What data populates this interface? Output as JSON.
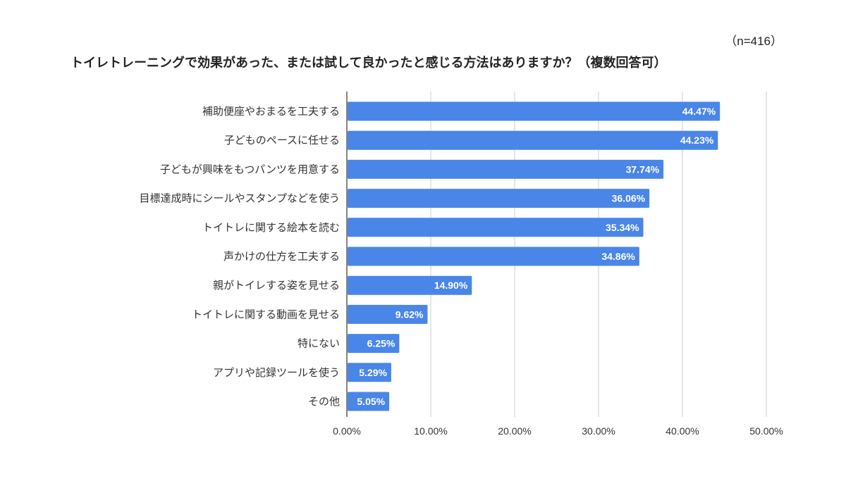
{
  "sample_size_label": "（n=416）",
  "chart_data": {
    "type": "bar",
    "orientation": "horizontal",
    "title": "トイレトレーニングで効果があった、または試して良かったと感じる方法はありますか？（複数回答可）",
    "categories": [
      "補助便座やおまるを工夫する",
      "子どものペースに任せる",
      "子どもが興味をもつパンツを用意する",
      "目標達成時にシールやスタンプなどを使う",
      "トイトレに関する絵本を読む",
      "声かけの仕方を工夫する",
      "親がトイレする姿を見せる",
      "トイトレに関する動画を見せる",
      "特にない",
      "アプリや記録ツールを使う",
      "その他"
    ],
    "values": [
      44.47,
      44.23,
      37.74,
      36.06,
      35.34,
      34.86,
      14.9,
      9.62,
      6.25,
      5.29,
      5.05
    ],
    "value_labels": [
      "44.47%",
      "44.23%",
      "37.74%",
      "36.06%",
      "35.34%",
      "34.86%",
      "14.90%",
      "9.62%",
      "6.25%",
      "5.29%",
      "5.05%"
    ],
    "xlim": [
      0,
      50
    ],
    "xticks": [
      0,
      10,
      20,
      30,
      40,
      50
    ],
    "xtick_labels": [
      "0.00%",
      "10.00%",
      "20.00%",
      "30.00%",
      "40.00%",
      "50.00%"
    ],
    "xlabel": "",
    "ylabel": "",
    "grid": true,
    "bar_color": "#4a86e8",
    "grid_color": "#cccccc",
    "axis_color": "#333333"
  }
}
